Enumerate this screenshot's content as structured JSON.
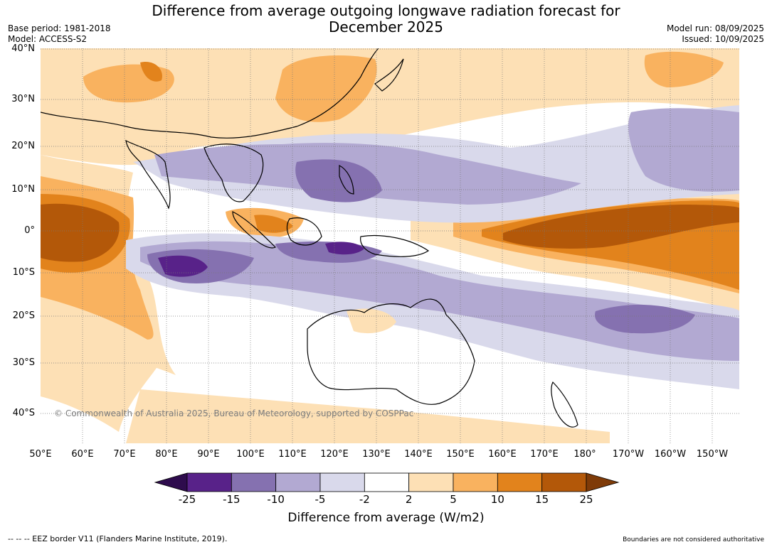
{
  "title_line1": "Difference from average outgoing longwave radiation forecast for",
  "title_line2": "December 2025",
  "base_period": "Base period: 1981-2018",
  "model": "Model: ACCESS-S2",
  "model_run": "Model run: 08/09/2025",
  "issued": "Issued: 10/09/2025",
  "lat_labels": [
    "40°N",
    "30°N",
    "20°N",
    "10°N",
    "0°",
    "10°S",
    "20°S",
    "30°S",
    "40°S"
  ],
  "lon_labels": [
    "50°E",
    "60°E",
    "70°E",
    "80°E",
    "90°E",
    "100°E",
    "110°E",
    "120°E",
    "130°E",
    "140°E",
    "150°E",
    "160°E",
    "170°E",
    "180°",
    "170°W",
    "160°W",
    "150°W"
  ],
  "copyright": "© Commonwealth of Australia 2025, Bureau of Meteorology, supported by COSPPac",
  "colorbar": {
    "ticks": [
      "-25",
      "-15",
      "-10",
      "-5",
      "-2",
      "2",
      "5",
      "10",
      "15",
      "25"
    ],
    "colors": [
      "#2e0c4d",
      "#582289",
      "#8571b0",
      "#b2a9d2",
      "#d9d9eb",
      "#ffffff",
      "#fde0b5",
      "#f9b25f",
      "#e2831c",
      "#b35809",
      "#7f3b08"
    ],
    "label": "Difference from average (W/m2)"
  },
  "footer_left": "-- -- -- EEZ border V11 (Flanders Marine Institute, 2019).",
  "footer_right": "Boundaries are not considered authoritative"
}
